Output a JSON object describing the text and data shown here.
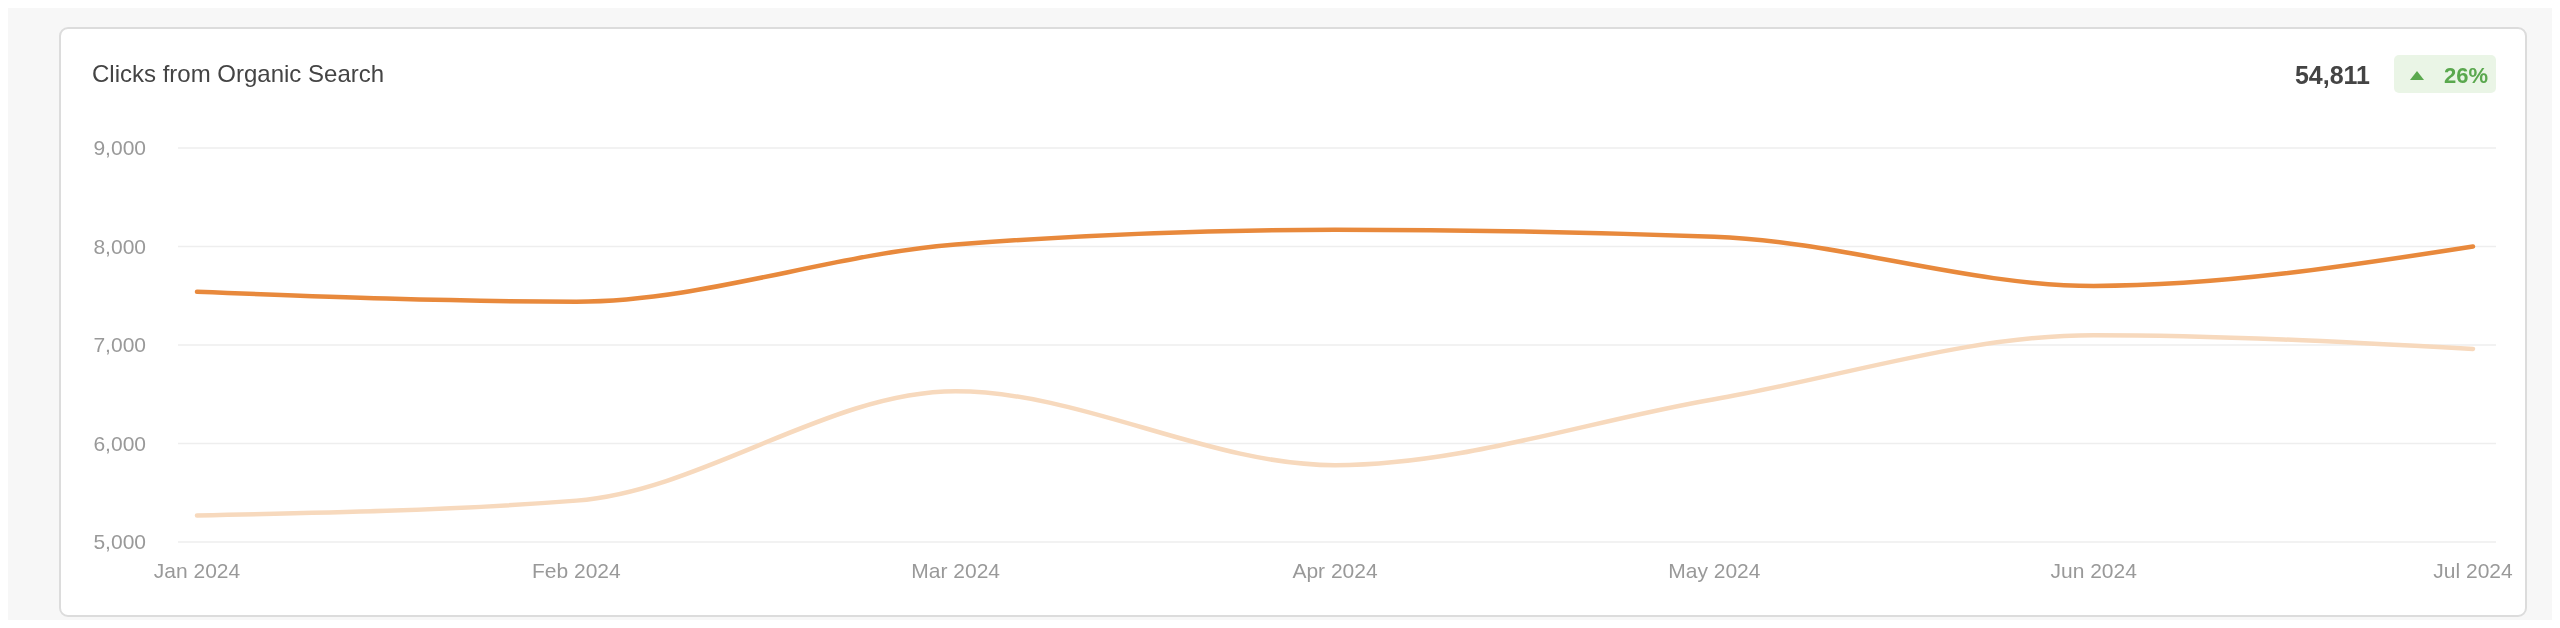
{
  "chart_data": {
    "type": "line",
    "title": "Clicks from Organic Search",
    "annotations": [
      "54,811",
      "26%"
    ],
    "categories": [
      "Jan 2024",
      "Feb 2024",
      "Mar 2024",
      "Apr 2024",
      "May 2024",
      "Jun 2024",
      "Jul 2024"
    ],
    "series": [
      {
        "color": "#e8893c",
        "values": [
          7540,
          7440,
          8020,
          8170,
          8100,
          7600,
          8000
        ]
      },
      {
        "color": "#f7d9bd",
        "values": [
          5270,
          5420,
          6530,
          5780,
          6450,
          7100,
          6960
        ]
      }
    ],
    "ylim": [
      5000,
      9000
    ],
    "yticks": [
      {
        "value": 5000,
        "label": "5,000"
      },
      {
        "value": 6000,
        "label": "6,000"
      },
      {
        "value": 7000,
        "label": "7,000"
      },
      {
        "value": 8000,
        "label": "8,000"
      },
      {
        "value": 9000,
        "label": "9,000"
      }
    ],
    "grid": "y",
    "marker": "none",
    "line_style": "solid"
  }
}
